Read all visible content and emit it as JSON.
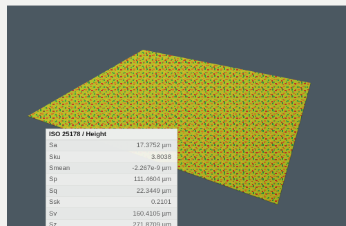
{
  "colors": {
    "background": "#4b5861",
    "surface_low": "#2f8f3a",
    "surface_mid": "#b8c21e",
    "surface_high": "#d9731a",
    "surface_peak": "#c8321c"
  },
  "table": {
    "title": "ISO 25178 / Height",
    "rows": [
      {
        "name": "Sa",
        "value": "17.3752 µm"
      },
      {
        "name": "Sku",
        "value": "3.8038"
      },
      {
        "name": "Smean",
        "value": "-2.267e-9 µm"
      },
      {
        "name": "Sp",
        "value": "111.4604 µm"
      },
      {
        "name": "Sq",
        "value": "22.3449 µm"
      },
      {
        "name": "Ssk",
        "value": "0.2101"
      },
      {
        "name": "Sv",
        "value": "160.4105 µm"
      },
      {
        "name": "Sz",
        "value": "271.8709 µm"
      }
    ]
  }
}
